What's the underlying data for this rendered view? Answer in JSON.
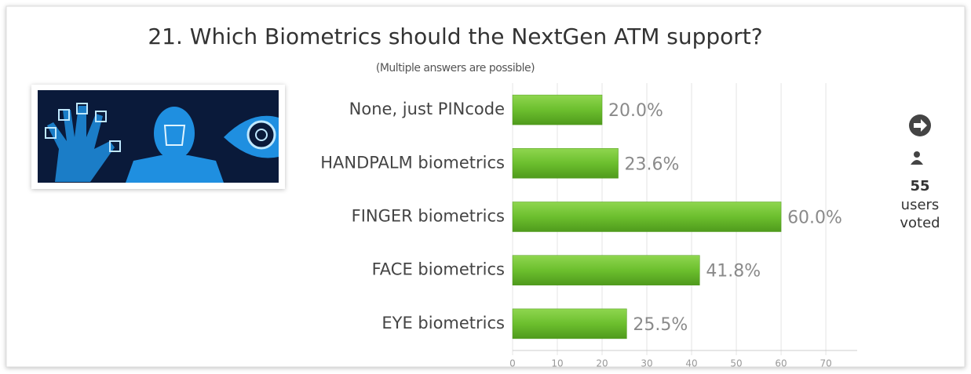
{
  "chart_data": {
    "type": "bar",
    "orientation": "horizontal",
    "title": "21. Which Biometrics should the NextGen ATM support?",
    "subtitle": "(Multiple answers are possible)",
    "categories": [
      "None, just PINcode",
      "HANDPALM biometrics",
      "FINGER biometrics",
      "FACE biometrics",
      "EYE biometrics"
    ],
    "values": [
      20.0,
      23.6,
      60.0,
      41.8,
      25.5
    ],
    "value_labels": [
      "20.0%",
      "23.6%",
      "60.0%",
      "41.8%",
      "25.5%"
    ],
    "color": "#6cbf2e",
    "xlim": [
      0,
      77
    ],
    "xticks": [
      0,
      10,
      20,
      30,
      40,
      50,
      60,
      70
    ],
    "grid": true
  },
  "voters": {
    "count": 55,
    "label_1": "users",
    "label_2": "voted"
  }
}
